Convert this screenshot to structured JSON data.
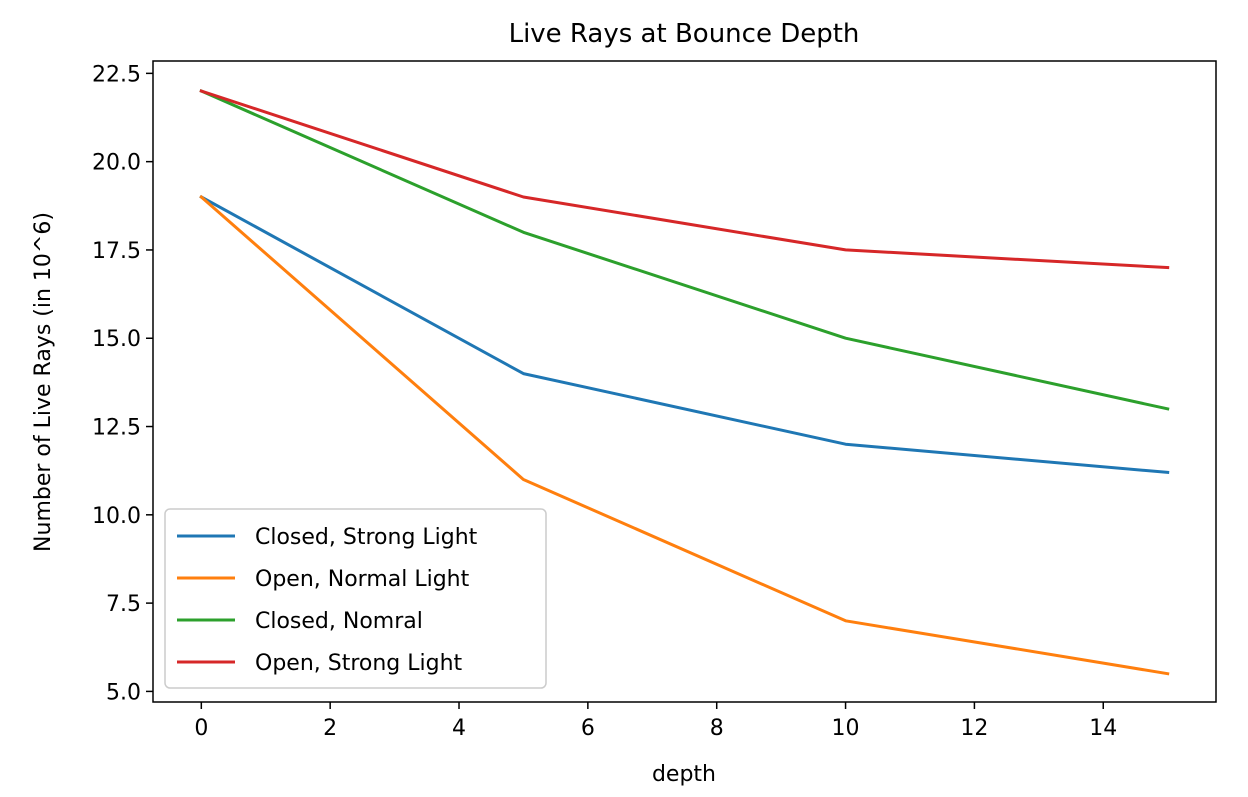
{
  "chart_data": {
    "type": "line",
    "title": "Live Rays at Bounce Depth",
    "xlabel": "depth",
    "ylabel": "Number of Live Rays (in 10^6)",
    "x": [
      0,
      5,
      10,
      15
    ],
    "xlim": [
      -0.75,
      15.75
    ],
    "ylim": [
      4.7,
      22.85
    ],
    "xticks": [
      0,
      2,
      4,
      6,
      8,
      10,
      12,
      14
    ],
    "xtick_labels": [
      "0",
      "2",
      "4",
      "6",
      "8",
      "10",
      "12",
      "14"
    ],
    "yticks": [
      5.0,
      7.5,
      10.0,
      12.5,
      15.0,
      17.5,
      20.0,
      22.5
    ],
    "ytick_labels": [
      "5.0",
      "7.5",
      "10.0",
      "12.5",
      "15.0",
      "17.5",
      "20.0",
      "22.5"
    ],
    "grid": false,
    "legend_position": "lower-left",
    "series": [
      {
        "name": "Closed, Strong Light",
        "color": "#1f77b4",
        "values": [
          19.0,
          14.0,
          12.0,
          11.2
        ]
      },
      {
        "name": "Open, Normal Light",
        "color": "#ff7f0e",
        "values": [
          19.0,
          11.0,
          7.0,
          5.5
        ]
      },
      {
        "name": "Closed, Nomral",
        "color": "#2ca02c",
        "values": [
          22.0,
          18.0,
          15.0,
          13.0
        ]
      },
      {
        "name": "Open, Strong Light",
        "color": "#d62728",
        "values": [
          22.0,
          19.0,
          17.5,
          17.0
        ]
      }
    ]
  }
}
